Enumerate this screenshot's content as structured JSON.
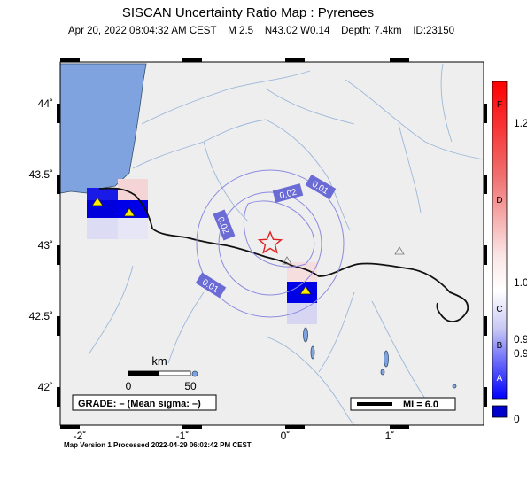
{
  "title": "SISCAN Uncertainty Ratio Map : Pyrenees",
  "subtitle": {
    "datetime": "Apr 20, 2022 08:04:32 AM CEST",
    "magnitude": "M 2.5",
    "location": "N43.02 W0.14",
    "depth": "Depth: 7.4km",
    "id": "ID:23150"
  },
  "axes": {
    "lat_ticks": [
      "44˚",
      "43.5˚",
      "43˚",
      "42.5˚",
      "42˚"
    ],
    "lon_ticks": [
      "-2˚",
      "-1˚",
      "0˚",
      "1˚"
    ]
  },
  "contour_labels": [
    "0.01",
    "0.02",
    "0.02",
    "0.01"
  ],
  "scale_bar": {
    "unit": "km",
    "ticks": [
      "0",
      "50"
    ]
  },
  "grade_label": "GRADE: – (Mean sigma: –)",
  "mi_label": "MI = 6.0",
  "colorbar": {
    "letters": [
      "F",
      "D",
      "C",
      "B",
      "A"
    ],
    "values": [
      "1.2",
      "1.0",
      "0.9",
      "0.9",
      "0"
    ],
    "colors": {
      "top": "#ff0000",
      "middle": "#ffffff",
      "bottom": "#0000ff"
    }
  },
  "footer": "Map Version 1 Processed 2022-04-29 06:02:42 PM CEST",
  "colors": {
    "sea": "#7fa3de",
    "land": "#eeeeee",
    "rivers": "#9bb7d9",
    "epicenter": "#e02020",
    "station": "#ffee00"
  }
}
